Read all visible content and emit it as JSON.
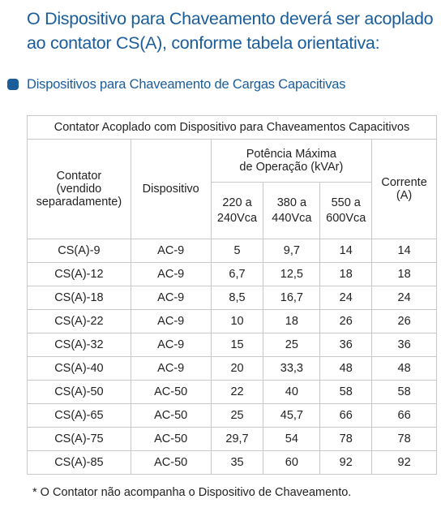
{
  "intro": {
    "text": "O Dispositivo para Chaveamento deverá ser acoplado ao contator CS(A), conforme tabela orientativa:"
  },
  "section": {
    "heading": "Dispositivos para Chaveamento de Cargas Capacitivas"
  },
  "table": {
    "title": "Contator Acoplado com Dispositivo para Chaveamentos Capacitivos",
    "headers": {
      "contator": [
        "Contator",
        "(vendido",
        "separadamente)"
      ],
      "dispositivo": "Dispositivo",
      "potencia": [
        "Potência Máxima",
        "de Operação (kVAr)"
      ],
      "corrente": [
        "Corrente",
        "(A)"
      ],
      "voltages": [
        [
          "220 a",
          "240Vca"
        ],
        [
          "380 a",
          "440Vca"
        ],
        [
          "550 a",
          "600Vca"
        ]
      ]
    },
    "rows": [
      [
        "CS(A)-9",
        "AC-9",
        "5",
        "9,7",
        "14",
        "14"
      ],
      [
        "CS(A)-12",
        "AC-9",
        "6,7",
        "12,5",
        "18",
        "18"
      ],
      [
        "CS(A)-18",
        "AC-9",
        "8,5",
        "16,7",
        "24",
        "24"
      ],
      [
        "CS(A)-22",
        "AC-9",
        "10",
        "18",
        "26",
        "26"
      ],
      [
        "CS(A)-32",
        "AC-9",
        "15",
        "25",
        "36",
        "36"
      ],
      [
        "CS(A)-40",
        "AC-9",
        "20",
        "33,3",
        "48",
        "48"
      ],
      [
        "CS(A)-50",
        "AC-50",
        "22",
        "40",
        "58",
        "58"
      ],
      [
        "CS(A)-65",
        "AC-50",
        "25",
        "45,7",
        "66",
        "66"
      ],
      [
        "CS(A)-75",
        "AC-50",
        "29,7",
        "54",
        "78",
        "78"
      ],
      [
        "CS(A)-85",
        "AC-50",
        "35",
        "60",
        "92",
        "92"
      ]
    ]
  },
  "footnote": "* O Contator não acompanha o Dispositivo de Chaveamento."
}
